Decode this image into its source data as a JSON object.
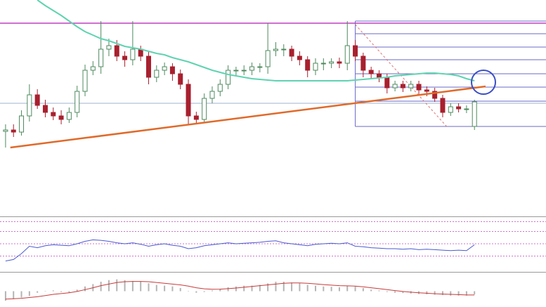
{
  "chart_data": [
    {
      "type": "candlestick",
      "xlim": [
        -0.7,
        68
      ],
      "ylim": [
        0,
        305
      ],
      "up_color": "#4d8a5e",
      "down_color": "#a8202e",
      "open": [
        118,
        120,
        117,
        140,
        170,
        155,
        145,
        140,
        135,
        145,
        175,
        205,
        210,
        235,
        240,
        225,
        220,
        235,
        225,
        195,
        205,
        210,
        200,
        185,
        140,
        135,
        165,
        175,
        185,
        205,
        205,
        205,
        210,
        210,
        233,
        235,
        235,
        225,
        220,
        205,
        215,
        215,
        217,
        215,
        240,
        225,
        205,
        200,
        195,
        180,
        185,
        180,
        185,
        177,
        175,
        165,
        145,
        153,
        150,
        125
      ],
      "high": [
        128,
        128,
        148,
        185,
        178,
        163,
        152,
        148,
        152,
        183,
        213,
        218,
        275,
        250,
        248,
        232,
        275,
        240,
        232,
        212,
        216,
        215,
        206,
        192,
        146,
        172,
        182,
        192,
        212,
        210,
        212,
        216,
        215,
        272,
        245,
        242,
        240,
        232,
        225,
        222,
        222,
        222,
        223,
        275,
        248,
        230,
        210,
        205,
        200,
        190,
        190,
        190,
        190,
        182,
        180,
        170,
        158,
        158,
        155,
        163
      ],
      "low": [
        95,
        110,
        112,
        132,
        150,
        138,
        134,
        128,
        130,
        138,
        168,
        198,
        200,
        225,
        218,
        210,
        212,
        218,
        185,
        188,
        198,
        190,
        178,
        128,
        128,
        130,
        158,
        168,
        178,
        196,
        198,
        198,
        202,
        200,
        225,
        225,
        218,
        212,
        195,
        198,
        205,
        208,
        208,
        205,
        218,
        195,
        192,
        188,
        172,
        175,
        174,
        175,
        170,
        168,
        160,
        138,
        140,
        145,
        144,
        120
      ],
      "close": [
        120,
        117,
        140,
        170,
        155,
        145,
        140,
        135,
        145,
        175,
        205,
        210,
        235,
        240,
        225,
        220,
        235,
        225,
        195,
        205,
        210,
        200,
        185,
        140,
        135,
        165,
        175,
        185,
        205,
        205,
        205,
        210,
        210,
        233,
        235,
        235,
        225,
        220,
        205,
        215,
        215,
        217,
        215,
        240,
        225,
        205,
        200,
        195,
        180,
        185,
        180,
        185,
        177,
        175,
        165,
        145,
        153,
        150,
        150,
        160
      ],
      "moving_average": {
        "color": "#5fd3b0",
        "values": [
          null,
          null,
          null,
          null,
          305,
          297,
          290,
          283,
          275,
          267,
          260,
          255,
          250,
          247,
          243,
          239,
          237,
          235,
          232,
          229,
          227,
          223,
          220,
          217,
          213,
          209,
          205,
          202,
          199,
          197,
          195,
          193,
          192,
          191,
          190,
          190,
          190,
          190,
          190,
          190,
          190,
          190,
          190,
          190,
          191,
          192,
          193,
          194,
          195,
          197,
          198,
          199,
          200,
          201,
          201,
          200,
          199,
          197,
          193,
          190
        ]
      },
      "trend_line": {
        "color": "#e06a2a",
        "x": [
          0.6,
          60.4
        ],
        "values": [
          95,
          182
        ]
      },
      "resistance_line": {
        "color": "#c040c0",
        "value": 272
      },
      "support_line": {
        "color": "#9fb0d0",
        "value": 158
      },
      "fib_levels": {
        "color": "#6a6ac8",
        "x_start": 44,
        "values": [
          275,
          257,
          238,
          220,
          200,
          181,
          161,
          125
        ]
      },
      "projection": {
        "color": "#e07070",
        "x": [
          44,
          55.5
        ],
        "values": [
          270,
          125
        ]
      }
    },
    {
      "type": "line",
      "xlim": [
        -0.7,
        68
      ],
      "ylim": [
        0,
        100
      ],
      "color": "#4a5ad0",
      "values": [
        15,
        18,
        30,
        45,
        42,
        46,
        48,
        47,
        46,
        50,
        55,
        58,
        57,
        55,
        52,
        50,
        52,
        49,
        45,
        48,
        50,
        47,
        45,
        40,
        42,
        46,
        48,
        50,
        52,
        50,
        51,
        52,
        53,
        55,
        56,
        52,
        50,
        48,
        46,
        49,
        50,
        51,
        50,
        52,
        45,
        44,
        42,
        41,
        40,
        40,
        39,
        40,
        38,
        39,
        38,
        37,
        36,
        37,
        36,
        48
      ],
      "levels": [
        95,
        75,
        50,
        25
      ],
      "level_color": "#d070d0"
    },
    {
      "type": "bar",
      "xlim": [
        -0.7,
        68
      ],
      "ylim": [
        -1,
        1
      ],
      "color": "#b4b4b4",
      "values": [
        -0.6,
        -0.5,
        -0.4,
        -0.3,
        -0.1,
        0.0,
        0.05,
        -0.05,
        -0.1,
        0.1,
        0.3,
        0.45,
        0.6,
        0.7,
        0.75,
        0.7,
        0.65,
        0.6,
        0.5,
        0.4,
        0.35,
        0.3,
        0.2,
        0.0,
        -0.1,
        -0.05,
        0.05,
        0.15,
        0.25,
        0.3,
        0.35,
        0.35,
        0.4,
        0.5,
        0.6,
        0.6,
        0.55,
        0.5,
        0.4,
        0.35,
        0.3,
        0.28,
        0.25,
        0.35,
        0.3,
        0.2,
        0.1,
        0.05,
        -0.05,
        -0.1,
        -0.12,
        -0.15,
        -0.18,
        -0.2,
        -0.22,
        -0.25,
        -0.28,
        -0.28,
        -0.28,
        -0.2
      ],
      "signal": {
        "color": "#c83a3a",
        "values": [
          -0.5,
          -0.48,
          -0.45,
          -0.4,
          -0.35,
          -0.28,
          -0.2,
          -0.15,
          -0.1,
          -0.02,
          0.1,
          0.22,
          0.35,
          0.45,
          0.55,
          0.6,
          0.62,
          0.62,
          0.6,
          0.55,
          0.5,
          0.45,
          0.4,
          0.32,
          0.22,
          0.15,
          0.12,
          0.13,
          0.16,
          0.2,
          0.25,
          0.3,
          0.35,
          0.4,
          0.45,
          0.5,
          0.52,
          0.52,
          0.5,
          0.46,
          0.42,
          0.38,
          0.35,
          0.34,
          0.32,
          0.28,
          0.22,
          0.16,
          0.1,
          0.04,
          -0.02,
          -0.06,
          -0.1,
          -0.13,
          -0.16,
          -0.18,
          -0.2,
          -0.22,
          -0.24,
          -0.24
        ]
      }
    }
  ]
}
